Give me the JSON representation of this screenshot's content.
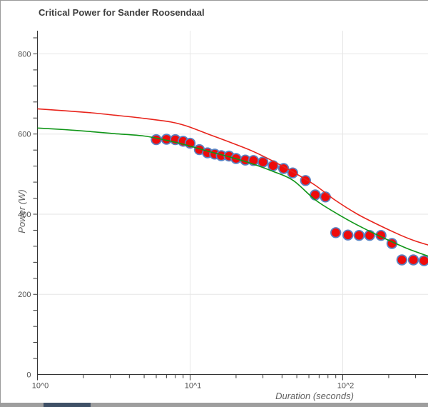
{
  "chart": {
    "title": "Critical Power for Sander Roosendaal",
    "x_axis": {
      "label": "Duration (seconds)",
      "scale": "log10",
      "ticks": [
        {
          "value": 1,
          "label": "10^0"
        },
        {
          "value": 10,
          "label": "10^1"
        },
        {
          "value": 100,
          "label": "10^2"
        }
      ]
    },
    "y_axis": {
      "label": "Power (W)",
      "ticks": [
        {
          "value": 0,
          "label": "0"
        },
        {
          "value": 200,
          "label": "200"
        },
        {
          "value": 400,
          "label": "400"
        },
        {
          "value": 600,
          "label": "600"
        },
        {
          "value": 800,
          "label": "800"
        }
      ],
      "minor_tick_step": 40,
      "max_minor_tick": 840
    },
    "colors": {
      "gridline": "#e6e6e6",
      "axis": "#333333",
      "tick_text": "#4f4f4f",
      "axis_title_text": "#616161",
      "title_text": "#3d3d3d"
    }
  },
  "chart_data": {
    "type": "scatter",
    "title": "Critical Power for Sander Roosendaal",
    "xlabel": "Duration (seconds)",
    "ylabel": "Power (W)",
    "x_scale": "log10",
    "xlim": [
      1,
      368
    ],
    "ylim": [
      0,
      858
    ],
    "grid": true,
    "legend": "none",
    "series": [
      {
        "name": "best-effort-points",
        "type": "scatter",
        "marker": {
          "fill": "#ee0b0b",
          "stroke": "#5a82c2",
          "stroke_width": 1.8,
          "radius": 6.8
        },
        "points": [
          [
            6,
            586
          ],
          [
            7,
            587
          ],
          [
            8,
            586
          ],
          [
            9,
            582
          ],
          [
            10,
            577
          ],
          [
            11.5,
            561
          ],
          [
            13,
            553
          ],
          [
            14.5,
            550
          ],
          [
            16,
            546
          ],
          [
            18,
            545
          ],
          [
            20,
            539
          ],
          [
            23,
            535
          ],
          [
            26,
            534
          ],
          [
            30,
            530
          ],
          [
            35,
            521
          ],
          [
            41,
            514
          ],
          [
            47,
            503
          ],
          [
            57,
            484
          ],
          [
            66,
            448
          ],
          [
            77,
            443
          ],
          [
            90,
            354
          ],
          [
            108,
            348
          ],
          [
            128,
            347
          ],
          [
            150,
            347
          ],
          [
            178,
            347
          ],
          [
            210,
            327
          ],
          [
            244,
            286
          ],
          [
            290,
            286
          ],
          [
            341,
            284
          ]
        ]
      },
      {
        "name": "cp-model-curve-red",
        "type": "line",
        "color": "#e8241c",
        "width": 1.6,
        "points": [
          [
            1,
            663
          ],
          [
            2.1,
            654
          ],
          [
            3.2,
            647
          ],
          [
            5,
            639
          ],
          [
            7.5,
            630
          ],
          [
            9.5,
            620
          ],
          [
            13.1,
            600
          ],
          [
            18.1,
            580
          ],
          [
            25,
            559
          ],
          [
            34.3,
            534
          ],
          [
            47.4,
            505
          ],
          [
            65.5,
            473
          ],
          [
            90,
            434
          ],
          [
            125,
            400
          ],
          [
            172,
            373
          ],
          [
            238,
            348
          ],
          [
            294,
            334
          ],
          [
            364,
            323
          ]
        ]
      },
      {
        "name": "cp-model-curve-green",
        "type": "line",
        "color": "#109618",
        "width": 1.6,
        "points": [
          [
            1,
            615
          ],
          [
            1.5,
            611
          ],
          [
            2.1,
            607
          ],
          [
            3.2,
            601
          ],
          [
            5,
            595
          ],
          [
            7.5,
            582
          ],
          [
            10,
            570
          ],
          [
            13.1,
            557
          ],
          [
            18.1,
            543
          ],
          [
            25,
            527
          ],
          [
            34.3,
            508
          ],
          [
            47.4,
            484
          ],
          [
            67,
            434
          ],
          [
            100,
            393
          ],
          [
            140,
            363
          ],
          [
            192,
            338
          ],
          [
            266,
            314
          ],
          [
            364,
            295
          ]
        ]
      }
    ]
  },
  "window": {
    "scrollbar": {
      "track_color": "#9e9e9e",
      "thumb_color": "#3f5066"
    }
  }
}
